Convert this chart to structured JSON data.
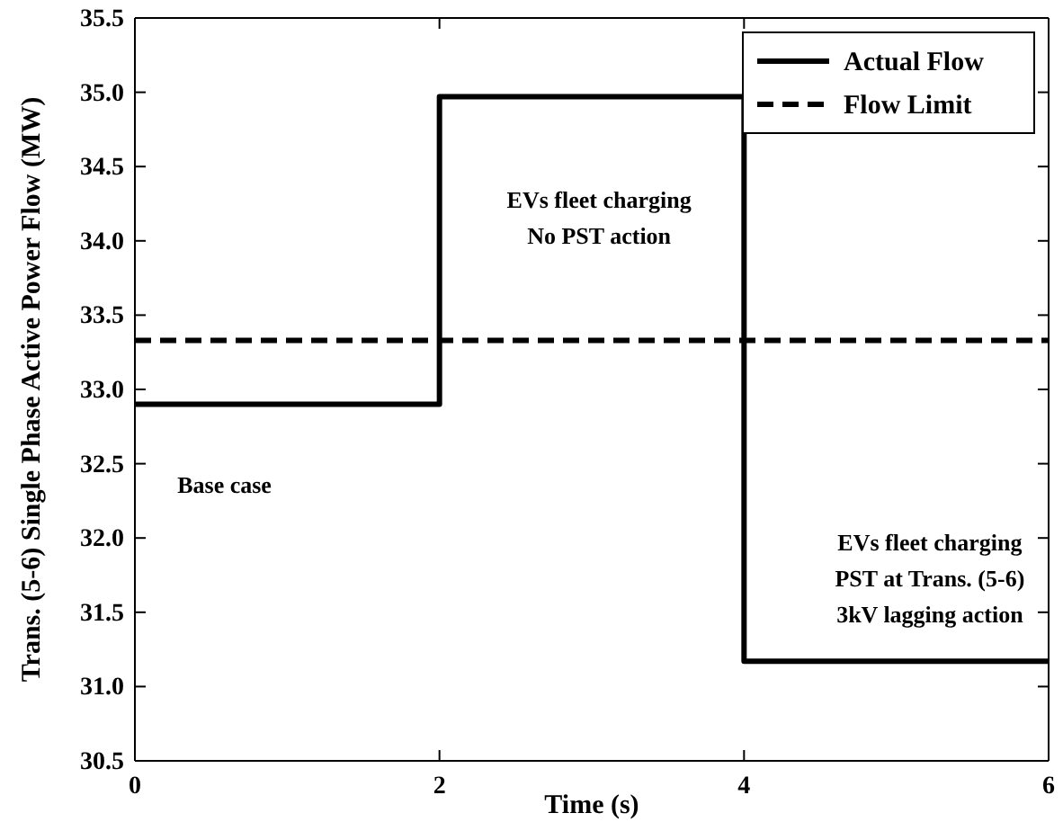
{
  "chart_data": {
    "type": "line",
    "xlabel": "Time (s)",
    "ylabel": "Trans. (5-6) Single Phase Active Power Flow (MW)",
    "xlim": [
      0,
      6
    ],
    "xticks": [
      0,
      2,
      4,
      6
    ],
    "ylim": [
      30.5,
      35.5
    ],
    "yticks": [
      {
        "value": 30.5,
        "label": "30.5"
      },
      {
        "value": 31,
        "label": "31.0"
      },
      {
        "value": 31.5,
        "label": "31.5"
      },
      {
        "value": 32,
        "label": "32.0"
      },
      {
        "value": 32.5,
        "label": "32.5"
      },
      {
        "value": 33,
        "label": "33.0"
      },
      {
        "value": 33.5,
        "label": "33.5"
      },
      {
        "value": 34,
        "label": "34.0"
      },
      {
        "value": 34.5,
        "label": "34.5"
      },
      {
        "value": 35,
        "label": "35.0"
      },
      {
        "value": 35.5,
        "label": "35.5"
      }
    ],
    "grid": false,
    "legend": "top right",
    "series": [
      {
        "name": "Actual Flow",
        "color": "#000000",
        "line_style": "solid",
        "x": [
          0,
          2,
          2,
          4,
          4,
          6
        ],
        "values": [
          32.9,
          32.9,
          34.97,
          34.97,
          31.17,
          31.17
        ]
      },
      {
        "name": "Flow Limit",
        "color": "#000000",
        "line_style": "dashed",
        "x": [
          0,
          6
        ],
        "values": [
          33.33,
          33.33
        ]
      }
    ],
    "annotations": [
      "Base case",
      "EVs fleet charging\nNo PST action",
      "EVs fleet charging\nPST at Trans. (5-6)\n3kV lagging action"
    ]
  }
}
